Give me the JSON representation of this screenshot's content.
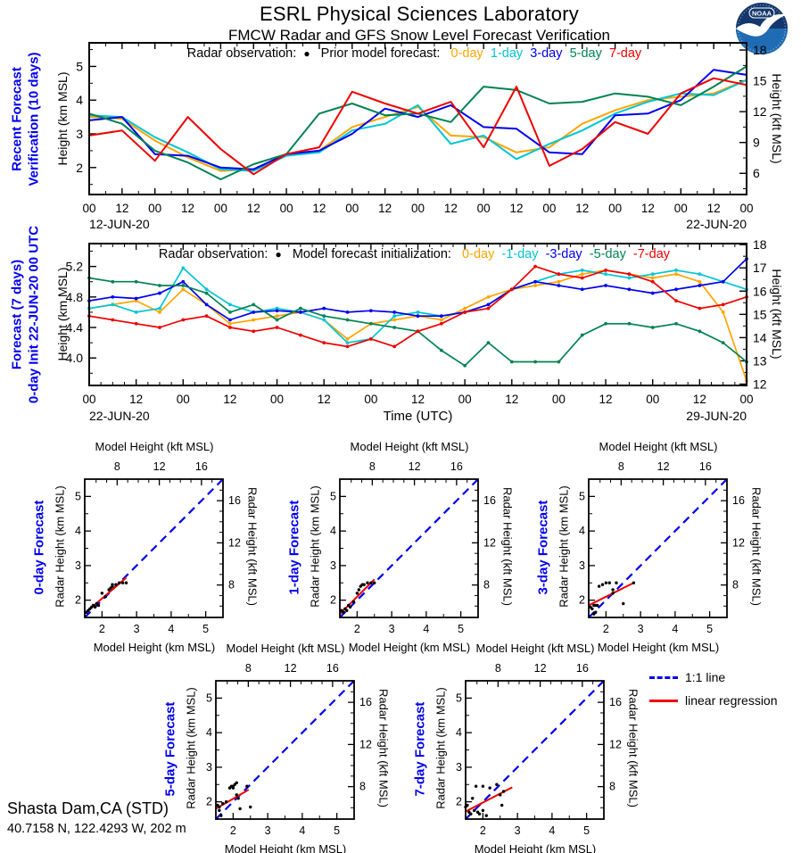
{
  "header": {
    "title": "ESRL Physical Sciences Laboratory",
    "subtitle": "FMCW Radar and GFS Snow Level Forecast Verification"
  },
  "station": {
    "name": "Shasta Dam,CA (STD)",
    "coords": "40.7158 N, 122.4293 W, 202 m"
  },
  "colors": {
    "day0": "#FFA500",
    "day1": "#00C5D4",
    "day3": "#0000EE",
    "day5": "#008351",
    "day7": "#EE0000",
    "obs": "#000000",
    "one_to_one": "#0000EE",
    "regression": "#EE0000",
    "panel_label": "#0000EE"
  },
  "bottom_legend": {
    "one_to_one": "1:1 line",
    "regression": "linear regression"
  },
  "chart_data": [
    {
      "id": "ts_recent",
      "type": "line",
      "panel_label_lines": [
        "Recent Forecast",
        "Verification (10 days)"
      ],
      "legend": {
        "obs_label": "Radar observation:",
        "series_label": "Prior model forecast:",
        "items": [
          {
            "label": "0-day",
            "color_key": "day0"
          },
          {
            "label": "1-day",
            "color_key": "day1"
          },
          {
            "label": "3-day",
            "color_key": "day3"
          },
          {
            "label": "5-day",
            "color_key": "day5"
          },
          {
            "label": "7-day",
            "color_key": "day7"
          }
        ]
      },
      "ylabel_left": "Height (km MSL)",
      "ylabel_right": "Height (kft MSL)",
      "xlabel": "",
      "date_left": "12-JUN-20",
      "date_right": "22-JUN-20",
      "x_hours": 240,
      "x_tick_labels": [
        "00",
        "12",
        "00",
        "12",
        "00",
        "12",
        "00",
        "12",
        "00",
        "12",
        "00",
        "12",
        "00",
        "12",
        "00",
        "12",
        "00",
        "12",
        "00",
        "12",
        "00"
      ],
      "ylim_km": [
        1.2,
        5.7
      ],
      "yticks_km": [
        2,
        3,
        4,
        5
      ],
      "ytick_decimals": 0,
      "yticks_kft": [
        6,
        9,
        12,
        15,
        18
      ],
      "series": [
        {
          "name": "0-day",
          "color_key": "day0",
          "values": [
            3.5,
            3.45,
            2.8,
            2.3,
            1.9,
            1.95,
            2.4,
            2.5,
            3.2,
            3.5,
            3.8,
            2.95,
            2.9,
            2.45,
            2.6,
            3.3,
            3.7,
            4.0,
            4.1,
            4.2,
            4.6
          ]
        },
        {
          "name": "1-day",
          "color_key": "day1",
          "values": [
            3.55,
            3.5,
            2.9,
            2.45,
            1.95,
            1.9,
            2.35,
            2.45,
            3.1,
            3.3,
            3.85,
            2.7,
            2.95,
            2.25,
            2.7,
            3.1,
            3.6,
            3.95,
            4.2,
            4.15,
            4.6
          ]
        },
        {
          "name": "3-day",
          "color_key": "day3",
          "values": [
            3.4,
            3.5,
            2.4,
            2.35,
            2.0,
            1.95,
            2.4,
            2.5,
            3.0,
            3.75,
            3.5,
            3.85,
            3.2,
            3.15,
            2.45,
            2.4,
            3.55,
            3.6,
            4.0,
            4.9,
            4.75
          ]
        },
        {
          "name": "5-day",
          "color_key": "day5",
          "values": [
            3.6,
            3.3,
            2.5,
            2.15,
            1.65,
            2.1,
            2.4,
            3.6,
            3.9,
            3.55,
            3.6,
            3.35,
            4.4,
            4.3,
            3.9,
            3.95,
            4.2,
            4.1,
            3.85,
            4.4,
            5.0
          ]
        },
        {
          "name": "7-day",
          "color_key": "day7",
          "values": [
            2.95,
            3.1,
            2.2,
            3.5,
            2.55,
            1.8,
            2.4,
            2.6,
            4.25,
            3.9,
            3.6,
            3.95,
            2.6,
            4.4,
            2.05,
            2.55,
            3.35,
            3.0,
            4.2,
            4.65,
            4.45
          ]
        }
      ]
    },
    {
      "id": "ts_forecast",
      "type": "line",
      "panel_label_lines": [
        "Forecast (7 days)",
        "0-day Init 22-JUN-20 00 UTC"
      ],
      "legend": {
        "obs_label": "Radar observation:",
        "series_label": "Model forecast initialization:",
        "items": [
          {
            "label": "0-day",
            "color_key": "day0"
          },
          {
            "label": "-1-day",
            "color_key": "day1"
          },
          {
            "label": "-3-day",
            "color_key": "day3"
          },
          {
            "label": "-5-day",
            "color_key": "day5"
          },
          {
            "label": "-7-day",
            "color_key": "day7"
          }
        ]
      },
      "ylabel_left": "Height (km MSL)",
      "ylabel_right": "Height (kft MSL)",
      "xlabel": "Time (UTC)",
      "date_left": "22-JUN-20",
      "date_right": "29-JUN-20",
      "x_hours": 168,
      "x_tick_labels": [
        "00",
        "12",
        "00",
        "12",
        "00",
        "12",
        "00",
        "12",
        "00",
        "12",
        "00",
        "12",
        "00",
        "12",
        "00"
      ],
      "ylim_km": [
        3.64,
        5.5
      ],
      "yticks_km": [
        4.0,
        4.4,
        4.8,
        5.2
      ],
      "ytick_decimals": 1,
      "yticks_kft": [
        12,
        13,
        14,
        15,
        16,
        17,
        18
      ],
      "series": [
        {
          "name": "0-day",
          "color_key": "day0",
          "values": [
            4.65,
            4.7,
            4.75,
            4.6,
            4.9,
            4.7,
            4.45,
            4.5,
            4.55,
            4.6,
            4.5,
            4.25,
            4.45,
            4.5,
            4.55,
            4.5,
            4.65,
            4.8,
            4.9,
            4.95,
            5.0,
            5.1,
            5.15,
            5.1,
            5.05,
            5.1,
            5.0,
            4.6,
            3.7
          ]
        },
        {
          "name": "-1-day",
          "color_key": "day1",
          "values": [
            4.65,
            4.7,
            4.6,
            4.65,
            5.18,
            4.9,
            4.7,
            4.6,
            4.65,
            4.6,
            4.5,
            4.2,
            4.25,
            4.55,
            4.6,
            4.55,
            4.6,
            4.7,
            4.9,
            5.0,
            5.1,
            5.15,
            5.1,
            5.05,
            5.1,
            5.15,
            5.1,
            5.0,
            4.9
          ]
        },
        {
          "name": "-3-day",
          "color_key": "day3",
          "values": [
            4.75,
            4.8,
            4.78,
            4.85,
            5.0,
            4.7,
            4.5,
            4.6,
            4.62,
            4.6,
            4.65,
            4.6,
            4.62,
            4.6,
            4.55,
            4.55,
            4.6,
            4.7,
            4.9,
            5.0,
            4.95,
            4.9,
            4.95,
            4.9,
            4.85,
            4.9,
            4.95,
            5.0,
            5.3
          ]
        },
        {
          "name": "-5-day",
          "color_key": "day5",
          "values": [
            5.05,
            5.0,
            5.0,
            4.95,
            4.95,
            4.85,
            4.6,
            4.7,
            4.5,
            4.65,
            4.55,
            4.5,
            4.45,
            4.4,
            4.35,
            4.1,
            3.9,
            4.2,
            3.95,
            3.95,
            3.95,
            4.3,
            4.45,
            4.45,
            4.4,
            4.45,
            4.35,
            4.2,
            3.95
          ]
        },
        {
          "name": "-7-day",
          "color_key": "day7",
          "values": [
            4.55,
            4.5,
            4.45,
            4.4,
            4.5,
            4.55,
            4.4,
            4.35,
            4.4,
            4.3,
            4.2,
            4.15,
            4.25,
            4.15,
            4.35,
            4.45,
            4.6,
            4.65,
            4.9,
            5.2,
            5.1,
            5.05,
            5.15,
            5.1,
            5.0,
            4.75,
            4.65,
            4.7,
            4.8
          ]
        }
      ]
    },
    {
      "id": "scatter_0day",
      "type": "scatter",
      "panel_label": "0-day Forecast",
      "xlabel_top": "Model Height (kft MSL)",
      "xlabel_bottom": "Model Height (km MSL)",
      "ylabel_left": "Radar Height (km MSL)",
      "ylabel_right": "Radar Height (kft MSL)",
      "lim_km": [
        1.5,
        5.5
      ],
      "ticks_km": [
        2,
        3,
        4,
        5
      ],
      "ticks_kft": [
        8,
        12,
        16
      ],
      "points": [
        [
          1.55,
          1.65
        ],
        [
          1.6,
          1.7
        ],
        [
          1.65,
          1.75
        ],
        [
          1.7,
          1.8
        ],
        [
          1.75,
          1.85
        ],
        [
          1.8,
          1.8
        ],
        [
          1.85,
          1.9
        ],
        [
          1.9,
          1.85
        ],
        [
          2.0,
          2.2
        ],
        [
          2.1,
          2.1
        ],
        [
          2.2,
          2.3
        ],
        [
          2.25,
          2.35
        ],
        [
          2.3,
          2.4
        ],
        [
          2.3,
          2.45
        ],
        [
          2.4,
          2.45
        ],
        [
          2.5,
          2.5
        ],
        [
          2.6,
          2.5
        ],
        [
          2.7,
          2.5
        ]
      ],
      "regression": [
        [
          1.5,
          1.62
        ],
        [
          2.7,
          2.65
        ]
      ]
    },
    {
      "id": "scatter_1day",
      "type": "scatter",
      "panel_label": "1-day Forecast",
      "xlabel_top": "Model Height (kft MSL)",
      "xlabel_bottom": "Model Height (km MSL)",
      "ylabel_left": "Radar Height (km MSL)",
      "ylabel_right": "Radar Height (kft MSL)",
      "lim_km": [
        1.5,
        5.5
      ],
      "ticks_km": [
        2,
        3,
        4,
        5
      ],
      "ticks_kft": [
        8,
        12,
        16
      ],
      "points": [
        [
          1.55,
          1.7
        ],
        [
          1.6,
          1.65
        ],
        [
          1.65,
          1.75
        ],
        [
          1.7,
          1.7
        ],
        [
          1.75,
          1.85
        ],
        [
          1.8,
          1.8
        ],
        [
          1.9,
          1.95
        ],
        [
          2.0,
          2.2
        ],
        [
          2.05,
          2.3
        ],
        [
          2.1,
          2.4
        ],
        [
          2.15,
          2.45
        ],
        [
          2.2,
          2.45
        ],
        [
          2.3,
          2.5
        ],
        [
          2.4,
          2.5
        ],
        [
          2.5,
          2.5
        ]
      ],
      "regression": [
        [
          1.5,
          1.6
        ],
        [
          2.5,
          2.6
        ]
      ]
    },
    {
      "id": "scatter_3day",
      "type": "scatter",
      "panel_label": "3-day Forecast",
      "xlabel_top": "Model Height (kft MSL)",
      "xlabel_bottom": "Model Height (km MSL)",
      "ylabel_left": "Radar Height (km MSL)",
      "ylabel_right": "Radar Height (kft MSL)",
      "lim_km": [
        1.5,
        5.5
      ],
      "ticks_km": [
        2,
        3,
        4,
        5
      ],
      "ticks_kft": [
        8,
        12,
        16
      ],
      "points": [
        [
          1.55,
          1.8
        ],
        [
          1.6,
          1.75
        ],
        [
          1.65,
          1.85
        ],
        [
          1.65,
          1.6
        ],
        [
          1.7,
          1.65
        ],
        [
          1.7,
          1.85
        ],
        [
          1.75,
          1.85
        ],
        [
          1.8,
          2.4
        ],
        [
          1.9,
          2.45
        ],
        [
          2.0,
          2.5
        ],
        [
          2.1,
          2.5
        ],
        [
          2.2,
          2.2
        ],
        [
          2.2,
          2.3
        ],
        [
          2.3,
          2.5
        ],
        [
          2.5,
          1.9
        ],
        [
          2.8,
          2.5
        ]
      ],
      "regression": [
        [
          1.5,
          1.85
        ],
        [
          2.8,
          2.5
        ]
      ]
    },
    {
      "id": "scatter_5day",
      "type": "scatter",
      "panel_label": "5-day Forecast",
      "xlabel_top": "Model Height (kft MSL)",
      "xlabel_bottom": "Model Height (km MSL)",
      "ylabel_left": "Radar Height (km MSL)",
      "ylabel_right": "Radar Height (kft MSL)",
      "lim_km": [
        1.5,
        5.5
      ],
      "ticks_km": [
        2,
        3,
        4,
        5
      ],
      "ticks_kft": [
        8,
        12,
        16
      ],
      "points": [
        [
          1.55,
          1.9
        ],
        [
          1.6,
          1.85
        ],
        [
          1.6,
          1.75
        ],
        [
          1.65,
          1.6
        ],
        [
          1.7,
          1.95
        ],
        [
          1.8,
          2.0
        ],
        [
          1.9,
          2.4
        ],
        [
          1.95,
          2.45
        ],
        [
          2.0,
          2.4
        ],
        [
          2.0,
          2.45
        ],
        [
          2.05,
          2.5
        ],
        [
          2.1,
          2.55
        ],
        [
          2.1,
          2.2
        ],
        [
          2.15,
          2.1
        ],
        [
          2.2,
          1.8
        ],
        [
          2.4,
          2.45
        ],
        [
          2.5,
          1.85
        ]
      ],
      "regression": [
        [
          1.5,
          1.8
        ],
        [
          2.45,
          2.35
        ]
      ]
    },
    {
      "id": "scatter_7day",
      "type": "scatter",
      "panel_label": "7-day Forecast",
      "xlabel_top": "Model Height (kft MSL)",
      "xlabel_bottom": "Model Height (km MSL)",
      "ylabel_left": "Radar Height (km MSL)",
      "ylabel_right": "Radar Height (kft MSL)",
      "lim_km": [
        1.5,
        5.5
      ],
      "ticks_km": [
        2,
        3,
        4,
        5
      ],
      "ticks_kft": [
        8,
        12,
        16
      ],
      "points": [
        [
          1.5,
          1.85
        ],
        [
          1.55,
          1.9
        ],
        [
          1.6,
          1.7
        ],
        [
          1.65,
          1.65
        ],
        [
          1.7,
          2.1
        ],
        [
          1.75,
          1.75
        ],
        [
          1.8,
          2.45
        ],
        [
          1.85,
          1.7
        ],
        [
          1.9,
          1.65
        ],
        [
          2.0,
          2.45
        ],
        [
          2.0,
          1.75
        ],
        [
          2.1,
          1.6
        ],
        [
          2.2,
          2.4
        ],
        [
          2.4,
          2.5
        ],
        [
          2.5,
          2.2
        ],
        [
          2.55,
          1.9
        ],
        [
          2.6,
          2.3
        ]
      ],
      "regression": [
        [
          1.5,
          1.72
        ],
        [
          2.85,
          2.42
        ]
      ]
    }
  ]
}
